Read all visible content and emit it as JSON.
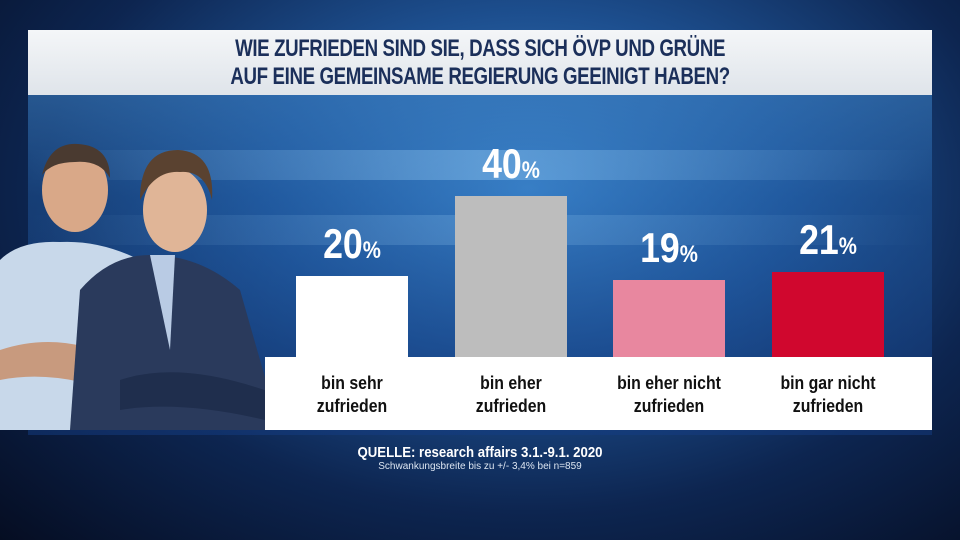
{
  "chart_data": {
    "type": "bar",
    "title": "WIE ZUFRIEDEN SIND SIE, DASS SICH ÖVP UND GRÜNE AUF EINE GEMEINSAME REGIERUNG GEEINIGT HABEN?",
    "title_lines": [
      "WIE ZUFRIEDEN SIND SIE, DASS SICH ÖVP UND GRÜNE",
      "AUF EINE GEMEINSAME REGIERUNG GEEINIGT HABEN?"
    ],
    "categories": [
      "bin sehr zufrieden",
      "bin eher zufrieden",
      "bin eher nicht zufrieden",
      "bin gar nicht zufrieden"
    ],
    "category_lines": [
      [
        "bin sehr",
        "zufrieden"
      ],
      [
        "bin eher",
        "zufrieden"
      ],
      [
        "bin eher nicht",
        "zufrieden"
      ],
      [
        "bin gar nicht",
        "zufrieden"
      ]
    ],
    "values": [
      20,
      40,
      19,
      21
    ],
    "unit": "%",
    "colors": [
      "#ffffff",
      "#bdbdbd",
      "#e8879f",
      "#d0072e"
    ],
    "ylim": [
      0,
      40
    ],
    "grid": false
  },
  "source": {
    "line1": "QUELLE: research affairs 3.1.-9.1. 2020",
    "line2": "Schwankungsbreite bis zu +/- 3,4% bei n=859"
  }
}
